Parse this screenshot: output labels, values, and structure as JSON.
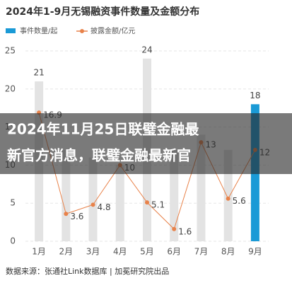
{
  "chart_data": {
    "type": "bar-line",
    "title": "2024年1-9月无锡融资事件数量及金额分布",
    "categories": [
      "1月",
      "2月",
      "3月",
      "4月",
      "5月",
      "6月",
      "7月",
      "8月",
      "9月"
    ],
    "series": [
      {
        "name": "事件数量/起",
        "type": "bar",
        "color": "#1a9ad6",
        "bar_colors": [
          "#e3e3e3",
          "#e3e3e3",
          "#e3e3e3",
          "#e3e3e3",
          "#e3e3e3",
          "#e3e3e3",
          "#e3e3e3",
          "#e3e3e3",
          "#1a9ad6"
        ],
        "values": [
          21,
          12,
          11,
          10,
          24,
          12,
          14,
          12,
          18
        ]
      },
      {
        "name": "披露金额/亿元",
        "type": "line",
        "color": "#e8824a",
        "values": [
          16.9,
          3.6,
          4.8,
          10,
          5.1,
          1.6,
          13,
          5.6,
          12
        ]
      }
    ],
    "ylim": [
      0,
      25
    ],
    "yticks": [
      0,
      5,
      10,
      15,
      20,
      25
    ],
    "grid": true,
    "source": "数据来源：张通社Link数据库 | 加冕研究院出品"
  },
  "banner": {
    "lines": [
      "2024年11月25日联璧金融最",
      "新官方消息，联璧金融最新官"
    ]
  }
}
